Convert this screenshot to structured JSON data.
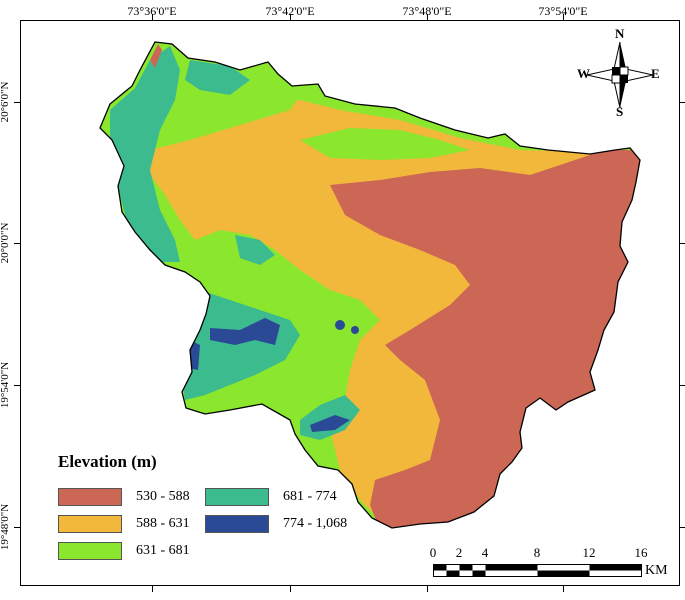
{
  "map": {
    "top_ticks": [
      "73°36'0\"E",
      "73°42'0\"E",
      "73°48'0\"E",
      "73°54'0\"E"
    ],
    "left_ticks": [
      "20°6'0\"N",
      "20°0'0\"N",
      "19°54'0\"N",
      "19°48'0\"N"
    ]
  },
  "legend": {
    "title": "Elevation (m)",
    "items": [
      {
        "label": "530 - 588",
        "color": "#cc6655"
      },
      {
        "label": "588 - 631",
        "color": "#f2b83b"
      },
      {
        "label": "631 - 681",
        "color": "#8be62e"
      },
      {
        "label": "681 - 774",
        "color": "#3cbb8f"
      },
      {
        "label": "774 - 1,068",
        "color": "#2a4a96"
      }
    ]
  },
  "north_arrow": {
    "n": "N",
    "s": "S",
    "e": "E",
    "w": "W"
  },
  "scale_bar": {
    "labels": [
      "0",
      "2",
      "4",
      "8",
      "12",
      "16"
    ],
    "unit": "KM"
  }
}
